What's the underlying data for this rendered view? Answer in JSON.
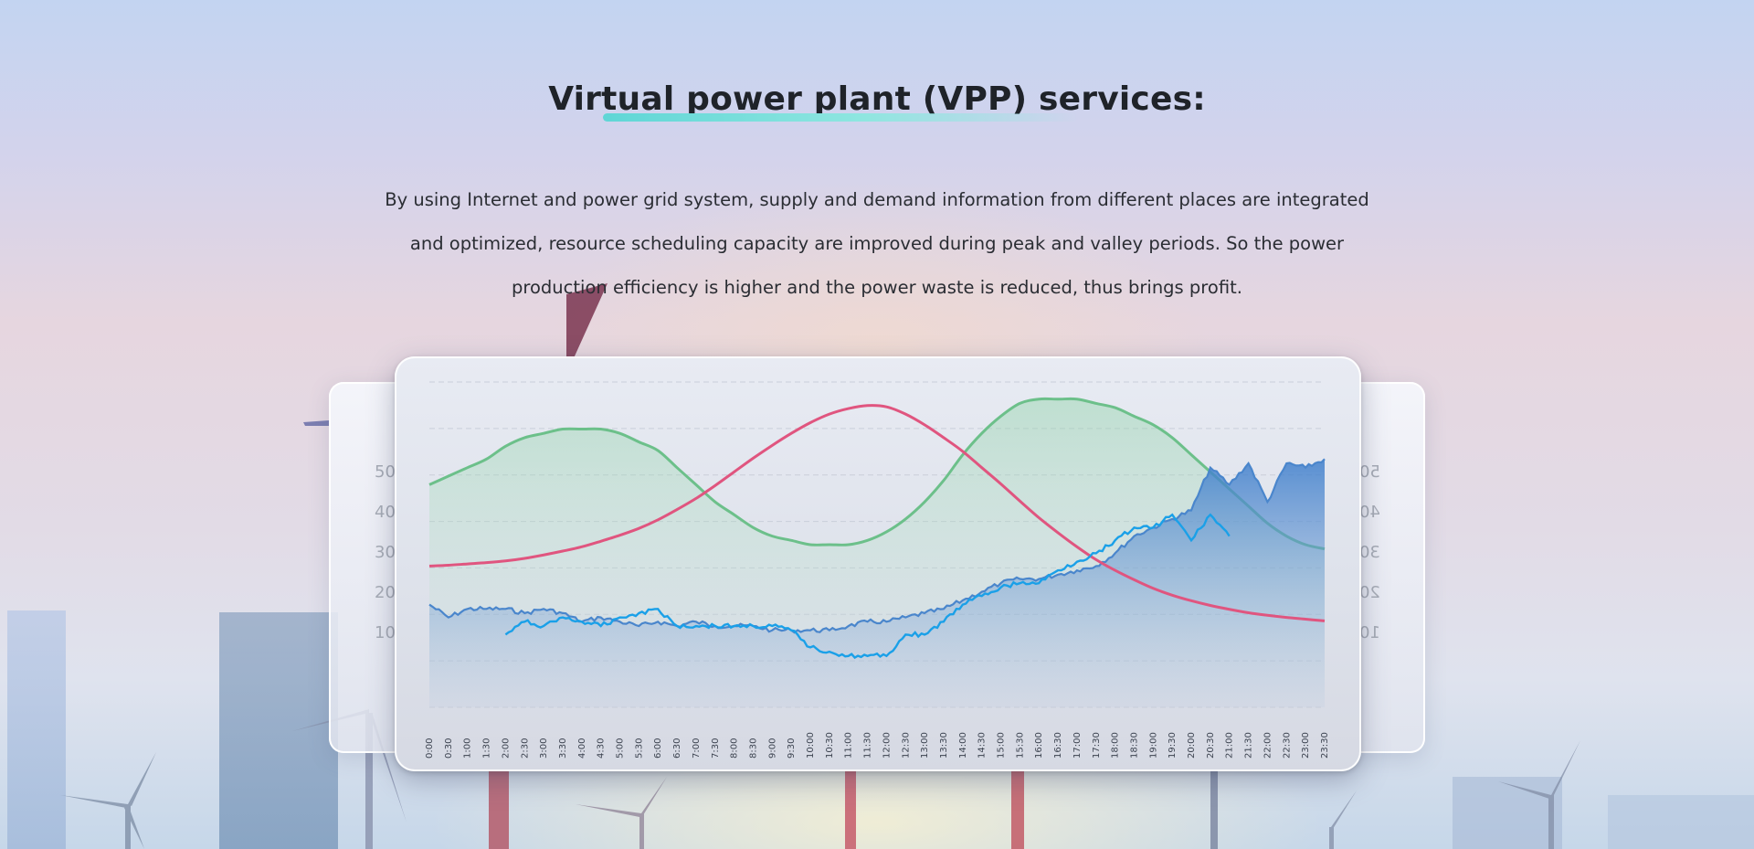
{
  "header": {
    "title": "Virtual power plant (VPP) services:",
    "description": [
      "By using Internet and power grid system, supply and demand information from different places are integrated",
      "and optimized, resource scheduling capacity are improved during peak and valley periods. So the power",
      "production efficiency is higher and the power waste is reduced, thus brings profit."
    ]
  },
  "colors": {
    "accent_underline": "#5fd6d6",
    "green_curve": "#6cc08a",
    "red_curve": "#e0557f",
    "blue_line": "#1aa0e8",
    "blue_area": "#4a86cc"
  },
  "back_panel": {
    "left_ticks": [
      "50",
      "40",
      "30",
      "20",
      "10"
    ],
    "right_ticks": [
      "50",
      "40",
      "30",
      "20",
      "10"
    ]
  },
  "chart_data": {
    "type": "area",
    "x": [
      "0:00",
      "0:30",
      "1:00",
      "1:30",
      "2:00",
      "2:30",
      "3:00",
      "3:30",
      "4:00",
      "4:30",
      "5:00",
      "5:30",
      "6:00",
      "6:30",
      "7:00",
      "7:30",
      "8:00",
      "8:30",
      "9:00",
      "9:30",
      "10:00",
      "10:30",
      "11:00",
      "11:30",
      "12:00",
      "12:30",
      "13:00",
      "13:30",
      "14:00",
      "14:30",
      "15:00",
      "15:30",
      "16:00",
      "16:30",
      "17:00",
      "17:30",
      "18:00",
      "18:30",
      "19:00",
      "19:30",
      "20:00",
      "20:30",
      "21:00",
      "21:30",
      "22:00",
      "22:30",
      "23:00",
      "23:30"
    ],
    "ylim": [
      -20,
      56
    ],
    "grid": true,
    "series": [
      {
        "type": "line",
        "values": [
          32,
          34,
          36,
          38,
          41,
          43,
          44,
          45,
          45,
          45,
          44,
          42,
          40,
          36,
          32,
          28,
          25,
          22,
          20,
          19,
          18,
          18,
          18,
          19,
          21,
          24,
          28,
          33,
          39,
          44,
          48,
          51,
          52,
          52,
          52,
          51,
          50,
          48,
          46,
          43,
          39,
          35,
          31,
          27,
          23,
          20,
          18,
          17
        ]
      },
      {
        "type": "line",
        "values": [
          13,
          13.2,
          13.5,
          13.8,
          14.2,
          14.8,
          15.6,
          16.5,
          17.5,
          18.8,
          20.2,
          21.8,
          23.8,
          26.2,
          28.8,
          31.8,
          35,
          38.2,
          41.2,
          44,
          46.5,
          48.5,
          49.8,
          50.5,
          50.2,
          48.5,
          46,
          43,
          39.8,
          36,
          32.2,
          28.2,
          24.3,
          20.8,
          17.5,
          14.5,
          12,
          9.8,
          7.8,
          6.2,
          4.9,
          3.8,
          2.9,
          2.1,
          1.5,
          1,
          0.6,
          0.2
        ]
      },
      {
        "type": "area",
        "values": [
          4,
          1,
          3,
          3,
          3,
          2,
          3,
          2,
          0,
          1,
          0,
          -1,
          0,
          -1,
          0,
          -1,
          -1,
          -1,
          -2,
          -2,
          -2,
          -2,
          -1,
          0,
          0,
          1,
          2,
          3,
          5,
          7,
          9,
          10,
          10,
          11,
          12,
          13,
          16,
          20,
          22,
          24,
          26,
          36,
          32,
          37,
          28,
          37,
          36,
          38
        ]
      },
      {
        "type": "line",
        "values": [
          null,
          null,
          null,
          null,
          -3,
          0,
          -1,
          1,
          0,
          -1,
          1,
          2,
          3,
          -1,
          -1,
          -1,
          -1,
          -1,
          -1,
          -2,
          -6,
          -7,
          -8,
          -8,
          -8,
          -3,
          -3,
          0,
          4,
          6,
          8,
          9,
          9,
          12,
          14,
          16,
          19,
          22,
          22,
          25,
          19,
          25,
          20,
          null,
          null,
          null,
          null,
          null
        ]
      }
    ]
  }
}
